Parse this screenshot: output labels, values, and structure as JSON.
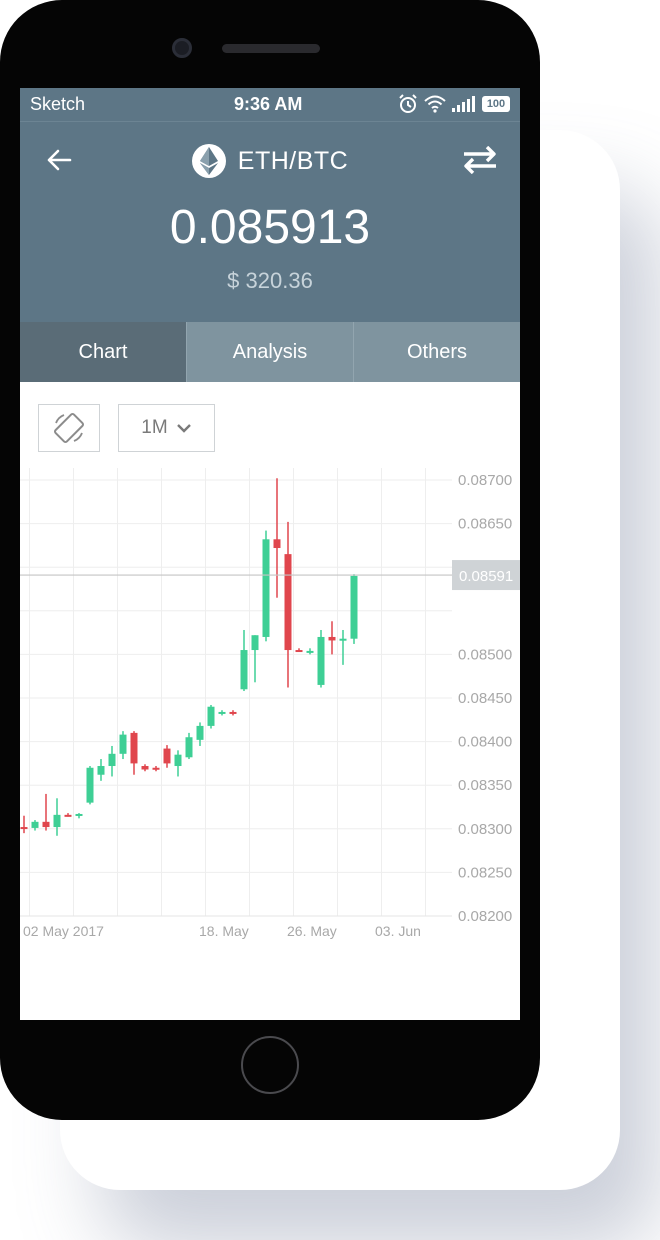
{
  "status_bar": {
    "carrier": "Sketch",
    "time": "9:36 AM",
    "battery": "100"
  },
  "header": {
    "pair": "ETH/BTC",
    "price": "0.085913",
    "usd_price": "$ 320.36"
  },
  "tabs": [
    {
      "label": "Chart",
      "active": true
    },
    {
      "label": "Analysis",
      "active": false
    },
    {
      "label": "Others",
      "active": false
    }
  ],
  "controls": {
    "range_label": "1M"
  },
  "icons": {
    "back": "arrow-left-icon",
    "swap": "swap-arrows-icon",
    "eth": "ethereum-icon",
    "rotate": "screen-rotation-icon",
    "chevron": "chevron-down-icon"
  },
  "colors": {
    "header_bg": "#5d7686",
    "tab_active": "#5a6c77",
    "tab_bg": "#7f949f",
    "up": "#3ecf95",
    "down": "#e0464d"
  },
  "chart_data": {
    "type": "candlestick",
    "y_ticks": [
      "0.08700",
      "0.08650",
      "0.08500",
      "0.08450",
      "0.08400",
      "0.08350",
      "0.08300",
      "0.08250",
      "0.08200"
    ],
    "x_ticks": [
      {
        "label": "02 May 2017",
        "pos": 0
      },
      {
        "label": "18. May",
        "pos": 16
      },
      {
        "label": "26. May",
        "pos": 24
      },
      {
        "label": "03. Jun",
        "pos": 32
      }
    ],
    "current_price": "0.08591",
    "ylim": [
      0.0815,
      0.087
    ],
    "candles": [
      {
        "o": 0.08302,
        "h": 0.08315,
        "l": 0.08295,
        "c": 0.08301
      },
      {
        "o": 0.08301,
        "h": 0.0831,
        "l": 0.08298,
        "c": 0.08308
      },
      {
        "o": 0.08308,
        "h": 0.0834,
        "l": 0.08298,
        "c": 0.08302
      },
      {
        "o": 0.08302,
        "h": 0.08335,
        "l": 0.08292,
        "c": 0.08316
      },
      {
        "o": 0.08316,
        "h": 0.08318,
        "l": 0.08314,
        "c": 0.08315
      },
      {
        "o": 0.08315,
        "h": 0.08318,
        "l": 0.08312,
        "c": 0.08317
      },
      {
        "o": 0.0833,
        "h": 0.08372,
        "l": 0.08328,
        "c": 0.0837
      },
      {
        "o": 0.08362,
        "h": 0.0838,
        "l": 0.08355,
        "c": 0.08372
      },
      {
        "o": 0.08372,
        "h": 0.08395,
        "l": 0.0836,
        "c": 0.08386
      },
      {
        "o": 0.08386,
        "h": 0.08412,
        "l": 0.0838,
        "c": 0.08408
      },
      {
        "o": 0.0841,
        "h": 0.08412,
        "l": 0.08362,
        "c": 0.08375
      },
      {
        "o": 0.08372,
        "h": 0.08374,
        "l": 0.08366,
        "c": 0.08368
      },
      {
        "o": 0.0837,
        "h": 0.08372,
        "l": 0.08366,
        "c": 0.08368
      },
      {
        "o": 0.08392,
        "h": 0.08396,
        "l": 0.0837,
        "c": 0.08375
      },
      {
        "o": 0.08372,
        "h": 0.0839,
        "l": 0.0836,
        "c": 0.08385
      },
      {
        "o": 0.08382,
        "h": 0.0841,
        "l": 0.0838,
        "c": 0.08405
      },
      {
        "o": 0.08402,
        "h": 0.08422,
        "l": 0.08395,
        "c": 0.08418
      },
      {
        "o": 0.08418,
        "h": 0.08442,
        "l": 0.08415,
        "c": 0.0844
      },
      {
        "o": 0.08432,
        "h": 0.08436,
        "l": 0.0843,
        "c": 0.08434
      },
      {
        "o": 0.08434,
        "h": 0.08436,
        "l": 0.0843,
        "c": 0.08432
      },
      {
        "o": 0.0846,
        "h": 0.08528,
        "l": 0.08458,
        "c": 0.08505
      },
      {
        "o": 0.08505,
        "h": 0.08522,
        "l": 0.08468,
        "c": 0.08522
      },
      {
        "o": 0.0852,
        "h": 0.08642,
        "l": 0.08515,
        "c": 0.08632
      },
      {
        "o": 0.08632,
        "h": 0.08702,
        "l": 0.08565,
        "c": 0.08622
      },
      {
        "o": 0.08615,
        "h": 0.08652,
        "l": 0.08462,
        "c": 0.08505
      },
      {
        "o": 0.08505,
        "h": 0.08507,
        "l": 0.08503,
        "c": 0.08504
      },
      {
        "o": 0.08503,
        "h": 0.08507,
        "l": 0.085,
        "c": 0.08504
      },
      {
        "o": 0.08465,
        "h": 0.08528,
        "l": 0.08462,
        "c": 0.0852
      },
      {
        "o": 0.0852,
        "h": 0.08538,
        "l": 0.085,
        "c": 0.08516
      },
      {
        "o": 0.08516,
        "h": 0.08528,
        "l": 0.08488,
        "c": 0.08518
      },
      {
        "o": 0.08518,
        "h": 0.08592,
        "l": 0.08512,
        "c": 0.0859
      }
    ]
  }
}
